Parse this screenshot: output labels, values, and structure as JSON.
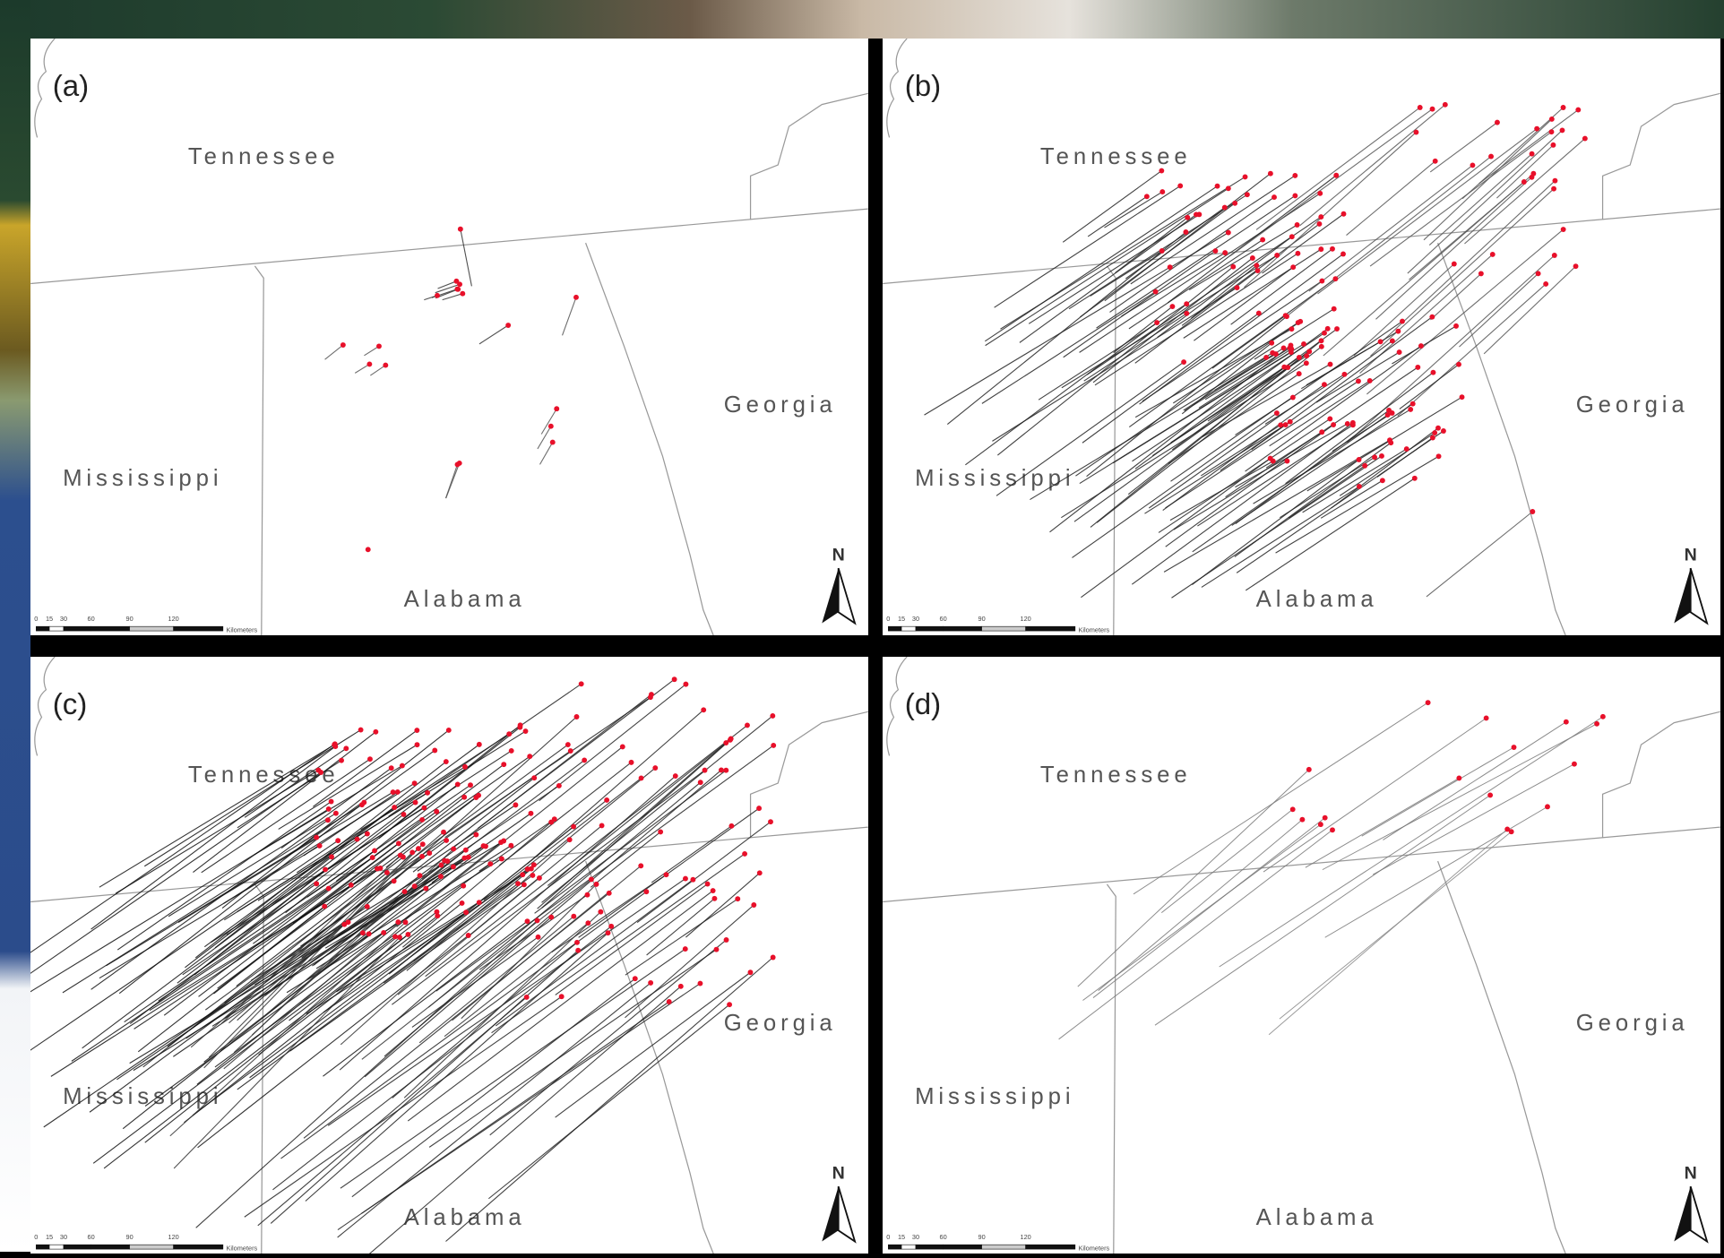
{
  "panels": [
    {
      "label": "(a)",
      "states": [
        "Tennessee",
        "Georgia",
        "Mississippi",
        "Alabama"
      ],
      "north": "N",
      "scale": [
        "0",
        "15",
        "30",
        "60",
        "90",
        "120",
        "Kilometers"
      ]
    },
    {
      "label": "(b)",
      "states": [
        "Tennessee",
        "Georgia",
        "Mississippi",
        "Alabama"
      ],
      "north": "N",
      "scale": [
        "0",
        "15",
        "30",
        "60",
        "90",
        "120",
        "Kilometers"
      ]
    },
    {
      "label": "(c)",
      "states": [
        "Tennessee",
        "Georgia",
        "Mississippi",
        "Alabama"
      ],
      "north": "N",
      "scale": [
        "0",
        "15",
        "30",
        "60",
        "90",
        "120",
        "Kilometers"
      ]
    },
    {
      "label": "(d)",
      "states": [
        "Tennessee",
        "Georgia",
        "Mississippi",
        "Alabama"
      ],
      "north": "N",
      "scale": [
        "0",
        "15",
        "30",
        "60",
        "90",
        "120",
        "Kilometers"
      ]
    }
  ]
}
